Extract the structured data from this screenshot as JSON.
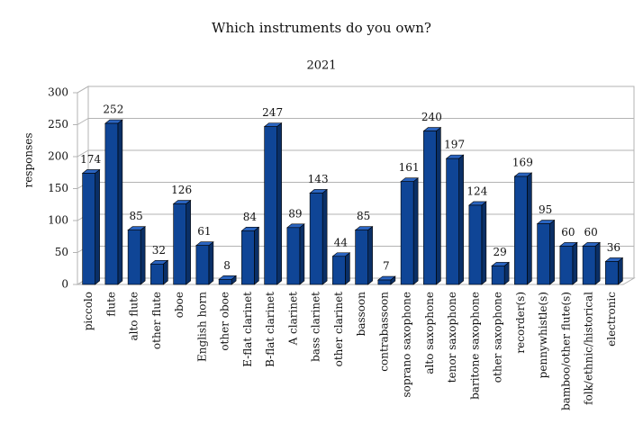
{
  "chart_data": {
    "type": "bar",
    "title": "Which instruments do you own?",
    "subtitle": "2021",
    "y_label": "responses",
    "categories": [
      "piccolo",
      "flute",
      "alto flute",
      "other flute",
      "oboe",
      "English horn",
      "other oboe",
      "E-flat clarinet",
      "B-flat clarinet",
      "A clarinet",
      "bass clarinet",
      "other clarinet",
      "bassoon",
      "contrabassoon",
      "soprano saxophone",
      "alto saxophone",
      "tenor saxophone",
      "baritone saxophone",
      "other saxophone",
      "recorder(s)",
      "pennywhistle(s)",
      "bamboo/other flute(s)",
      "folk/ethnic/historical",
      "electronic"
    ],
    "values": [
      174,
      252,
      85,
      32,
      126,
      61,
      8,
      84,
      247,
      89,
      143,
      44,
      85,
      7,
      161,
      240,
      197,
      124,
      29,
      169,
      95,
      60,
      60,
      36
    ],
    "color": "#0f4596",
    "ylim": [
      0,
      300
    ],
    "yticks": [
      0,
      50,
      100,
      150,
      200,
      250,
      300
    ],
    "grid": true
  }
}
